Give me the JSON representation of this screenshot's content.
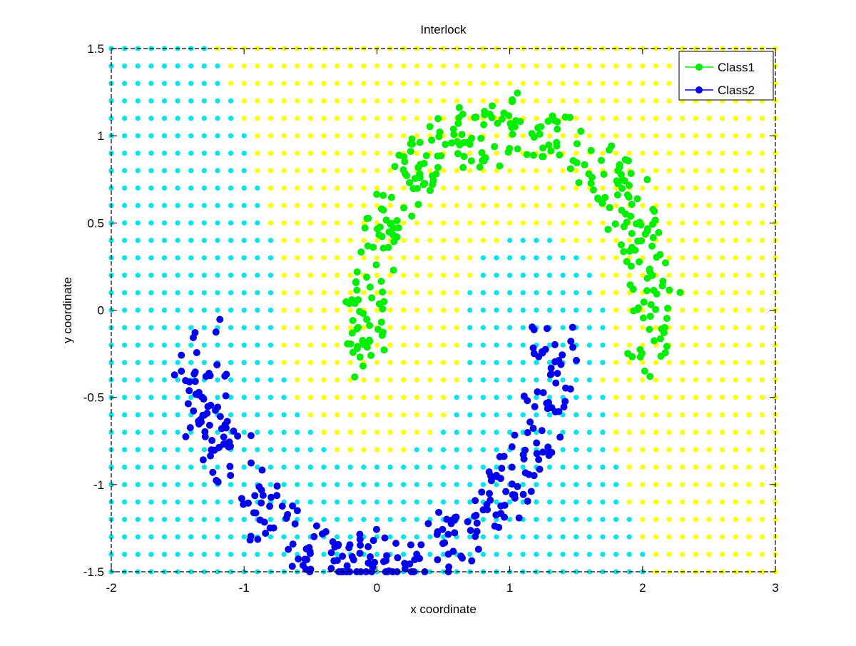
{
  "chart_data": {
    "type": "scatter",
    "title": "Interlock",
    "xlabel": "x coordinate",
    "ylabel": "y coordinate",
    "xlim": [
      -2,
      3
    ],
    "ylim": [
      -1.5,
      1.5
    ],
    "xticks": [
      -2,
      -1,
      0,
      1,
      2,
      3
    ],
    "yticks": [
      -1.5,
      -1,
      -0.5,
      0,
      0.5,
      1,
      1.5
    ],
    "xtick_labels": [
      "-2",
      "-1",
      "0",
      "1",
      "2",
      "3"
    ],
    "ytick_labels": [
      "-1.5",
      "-1",
      "-0.5",
      "0",
      "0.5",
      "1",
      "1.5"
    ],
    "grid": false,
    "legend": {
      "position": "top-right",
      "entries": [
        "Class1",
        "Class2"
      ]
    },
    "background_grid": {
      "description": "decision-region grid",
      "x_step": 0.1,
      "y_step": 0.1,
      "colors": {
        "Class1": "#ffff00",
        "Class2": "#00e5ee"
      }
    },
    "series": [
      {
        "name": "Class1",
        "color": "#00ee00",
        "shape": "upper-arc",
        "center": [
          1.0,
          -0.05
        ],
        "radius": 1.1,
        "angle_range_deg": [
          -15,
          195
        ],
        "points": [
          [
            -0.35,
            -0.25
          ],
          [
            -0.3,
            -0.1
          ],
          [
            -0.25,
            0.05
          ],
          [
            -0.2,
            0.2
          ],
          [
            -0.15,
            0.35
          ],
          [
            -0.1,
            0.45
          ],
          [
            -0.05,
            0.55
          ],
          [
            0.05,
            0.65
          ],
          [
            0.15,
            0.75
          ],
          [
            0.25,
            0.85
          ],
          [
            0.4,
            0.95
          ],
          [
            0.55,
            1.02
          ],
          [
            0.7,
            1.08
          ],
          [
            0.85,
            1.12
          ],
          [
            1.0,
            1.12
          ],
          [
            1.15,
            1.1
          ],
          [
            1.3,
            1.05
          ],
          [
            1.45,
            1.0
          ],
          [
            1.6,
            0.9
          ],
          [
            1.75,
            0.8
          ],
          [
            1.9,
            0.65
          ],
          [
            2.05,
            0.5
          ],
          [
            2.15,
            0.35
          ],
          [
            2.25,
            0.15
          ],
          [
            2.35,
            0.0
          ],
          [
            2.45,
            -0.15
          ],
          [
            2.5,
            -0.25
          ]
        ]
      },
      {
        "name": "Class2",
        "color": "#0000ee",
        "shape": "lower-arc",
        "center": [
          0.0,
          -0.1
        ],
        "radius": 1.35,
        "angle_range_deg": [
          180,
          360
        ],
        "points": [
          [
            -1.4,
            0.0
          ],
          [
            -1.35,
            -0.2
          ],
          [
            -1.3,
            -0.4
          ],
          [
            -1.2,
            -0.6
          ],
          [
            -1.1,
            -0.8
          ],
          [
            -0.95,
            -0.95
          ],
          [
            -0.8,
            -1.1
          ],
          [
            -0.6,
            -1.25
          ],
          [
            -0.4,
            -1.35
          ],
          [
            -0.2,
            -1.4
          ],
          [
            0.0,
            -1.42
          ],
          [
            0.2,
            -1.4
          ],
          [
            0.4,
            -1.35
          ],
          [
            0.6,
            -1.25
          ],
          [
            0.8,
            -1.1
          ],
          [
            0.95,
            -0.95
          ],
          [
            1.1,
            -0.8
          ],
          [
            1.2,
            -0.6
          ],
          [
            1.3,
            -0.4
          ],
          [
            1.35,
            -0.2
          ],
          [
            1.4,
            0.0
          ]
        ]
      }
    ]
  }
}
